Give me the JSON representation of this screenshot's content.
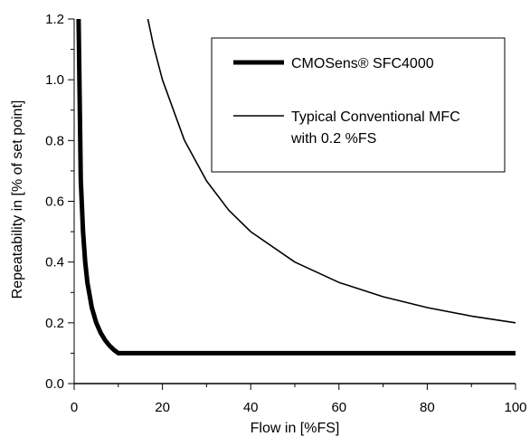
{
  "chart_data": {
    "type": "line",
    "title": "",
    "xlabel": "Flow in [%FS]",
    "ylabel": "Repeatability in [% of set point]",
    "xlim": [
      0,
      100
    ],
    "ylim": [
      0,
      1.2
    ],
    "x_ticks": [
      0,
      20,
      40,
      60,
      80,
      100
    ],
    "y_ticks": [
      0.0,
      0.2,
      0.4,
      0.6,
      0.8,
      1.0,
      1.2
    ],
    "x_tick_labels": [
      "0",
      "20",
      "40",
      "60",
      "80",
      "100"
    ],
    "y_tick_labels": [
      "0.0",
      "0.2",
      "0.4",
      "0.6",
      "0.8",
      "1.0",
      "1.2"
    ],
    "grid": false,
    "legend_position": "top-right",
    "series": [
      {
        "name": "CMOSens® SFC4000",
        "legend_lines": [
          "CMOSens® SFC4000"
        ],
        "color": "#000000",
        "line_weight": "thick",
        "x": [
          1,
          1.5,
          2,
          2.5,
          3,
          4,
          5,
          6,
          7,
          8,
          9,
          10,
          20,
          40,
          60,
          80,
          100
        ],
        "y": [
          1.2,
          0.67,
          0.5,
          0.4,
          0.333,
          0.25,
          0.2,
          0.167,
          0.143,
          0.125,
          0.111,
          0.1,
          0.1,
          0.1,
          0.1,
          0.1,
          0.1
        ]
      },
      {
        "name": "Typical Conventional MFC with 0.2 %FS",
        "legend_lines": [
          "Typical Conventional MFC",
          "with 0.2 %FS"
        ],
        "color": "#000000",
        "line_weight": "thin",
        "x": [
          16.7,
          18,
          20,
          25,
          30,
          35,
          40,
          50,
          60,
          70,
          80,
          90,
          100
        ],
        "y": [
          1.2,
          1.111,
          1.0,
          0.8,
          0.667,
          0.571,
          0.5,
          0.4,
          0.333,
          0.286,
          0.25,
          0.222,
          0.2
        ]
      }
    ]
  }
}
